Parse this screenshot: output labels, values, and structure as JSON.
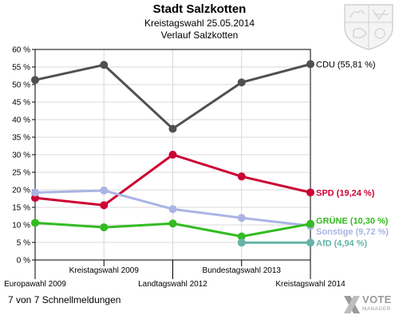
{
  "header": {
    "title": "Stadt Salzkotten",
    "subtitle": "Kreistagswahl 25.05.2014",
    "subtitle2": "Verlauf Salzkotten"
  },
  "footer": {
    "text": "7 von 7 Schnellmeldungen"
  },
  "logo": {
    "line1": "VOTE",
    "line2": "MANAGER"
  },
  "chart_data": {
    "type": "line",
    "title": "Stadt Salzkotten",
    "subtitle": "Kreistagswahl 25.05.2014 Verlauf Salzkotten",
    "x": [
      "Europawahl 2009",
      "Kreistagswahl 2009",
      "Landtagswahl 2012",
      "Bundestagswahl 2013",
      "Kreistagswahl 2014"
    ],
    "x_label_row": [
      "bottom",
      "top",
      "bottom",
      "top",
      "bottom"
    ],
    "ylim": [
      0,
      60
    ],
    "yticks": [
      0,
      5,
      10,
      15,
      20,
      25,
      30,
      35,
      40,
      45,
      50,
      55,
      60
    ],
    "ytick_labels": [
      "0 %",
      "5 %",
      "10 %",
      "15 %",
      "20 %",
      "25 %",
      "30 %",
      "35 %",
      "40 %",
      "45 %",
      "50 %",
      "55 %",
      "60 %"
    ],
    "grid": true,
    "series": [
      {
        "name": "CDU",
        "label": "CDU (55,81 %)",
        "color": "#505050",
        "values": [
          51.3,
          55.6,
          37.4,
          50.6,
          55.81
        ]
      },
      {
        "name": "SPD",
        "label": "SPD (19,24 %)",
        "color": "#cc0033",
        "values": [
          17.7,
          15.6,
          30.0,
          23.8,
          19.24
        ]
      },
      {
        "name": "Sonstige",
        "label": "Sonstige (9,72 %)",
        "color": "#aab4e4",
        "values": [
          19.2,
          19.8,
          14.5,
          12.0,
          9.72
        ]
      },
      {
        "name": "GRÜNE",
        "label": "GRÜNE (10,30 %)",
        "color": "#33bb22",
        "values": [
          10.6,
          9.3,
          10.4,
          6.7,
          10.3
        ]
      },
      {
        "name": "AfD",
        "label": "AfD (4,94 %)",
        "color": "#66b3a8",
        "values": [
          null,
          null,
          null,
          4.94,
          4.94
        ]
      }
    ]
  }
}
